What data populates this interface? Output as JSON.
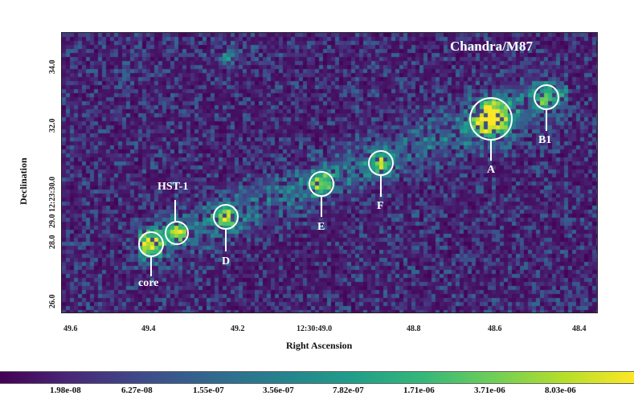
{
  "plot": {
    "title_overlay": "Chandra/M87",
    "x_axis_label": "Right Ascension",
    "y_axis_label": "Declination",
    "x_ticks": [
      "49.6",
      "49.4",
      "49.2",
      "12:30:49.0",
      "48.8",
      "48.6",
      "48.4"
    ],
    "y_ticks": [
      "26.0",
      "28.0",
      "29.0 12:23:30.0",
      "32.0",
      "34.0"
    ],
    "colormap": "viridis"
  },
  "knots": [
    {
      "label": "core"
    },
    {
      "label": "HST-1"
    },
    {
      "label": "D"
    },
    {
      "label": "E"
    },
    {
      "label": "F"
    },
    {
      "label": "A"
    },
    {
      "label": "B1"
    }
  ],
  "colorbar": {
    "tick_labels": [
      "1.98e-08",
      "6.27e-08",
      "1.55e-07",
      "3.56e-07",
      "7.82e-07",
      "1.71e-06",
      "3.71e-06",
      "8.03e-06"
    ]
  }
}
